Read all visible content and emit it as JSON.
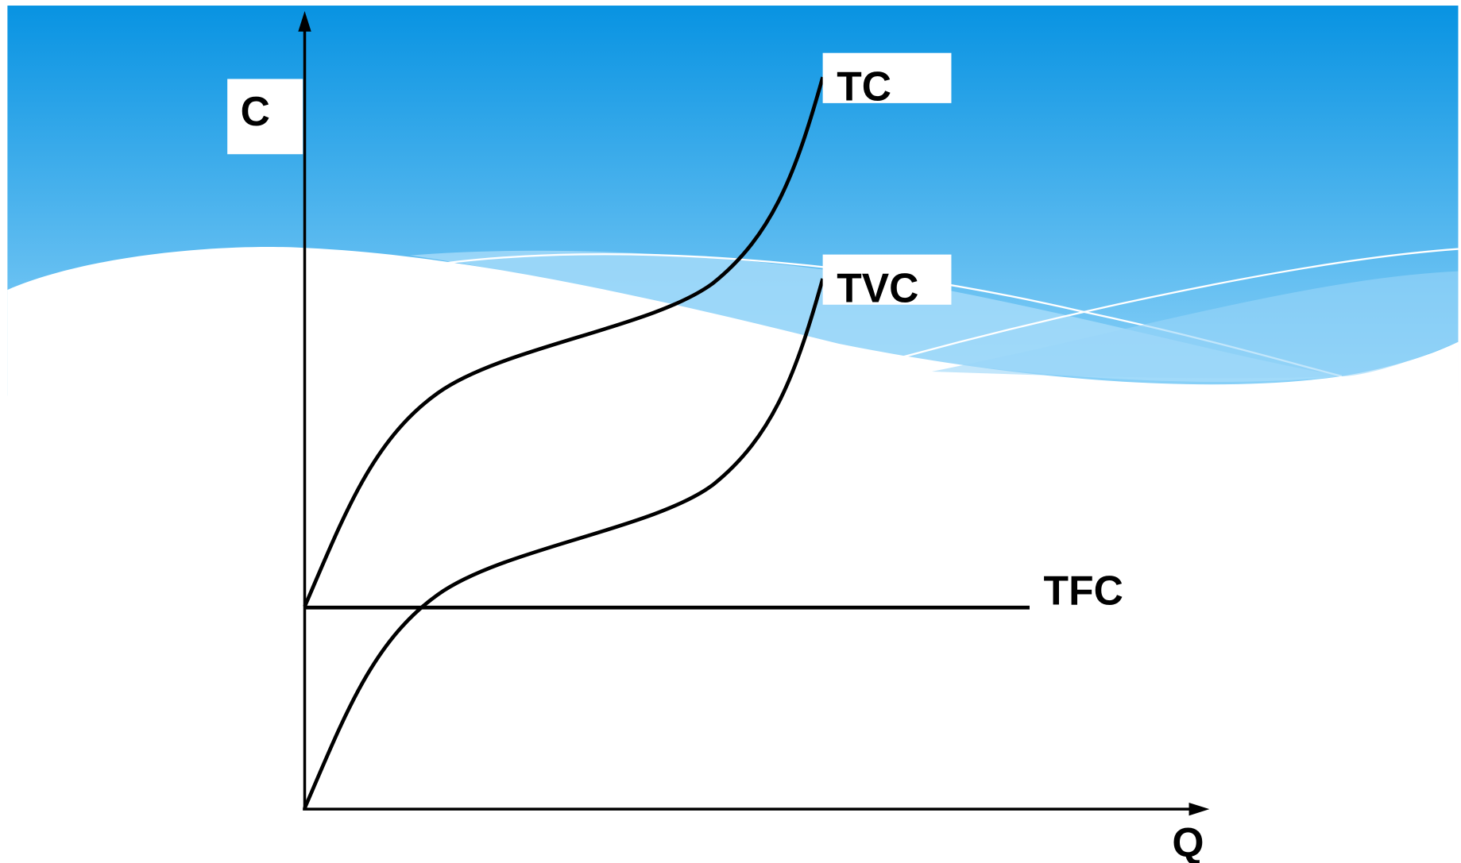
{
  "diagram": {
    "y_axis_label": "C",
    "x_axis_label": "Q",
    "curves": {
      "tc": "TC",
      "tvc": "TVC",
      "tfc": "TFC"
    }
  }
}
